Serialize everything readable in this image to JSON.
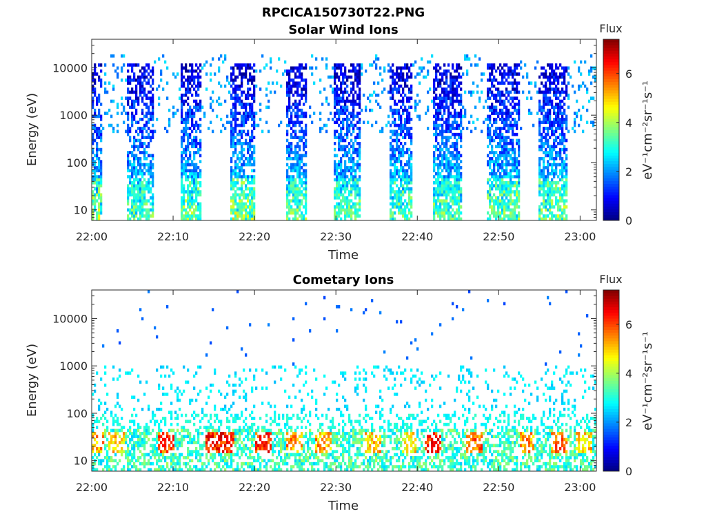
{
  "figure_title": "RPCICA150730T22.PNG",
  "chart_data": [
    {
      "type": "heatmap",
      "title": "Solar Wind Ions",
      "xlabel": "Time",
      "ylabel": "Energy (eV)",
      "y_scale": "log",
      "x_range": [
        "22:00",
        "23:02"
      ],
      "ylim": [
        6,
        40000
      ],
      "x_tick_labels": [
        "22:00",
        "22:10",
        "22:20",
        "22:30",
        "22:40",
        "22:50",
        "23:00"
      ],
      "x_tick_minutes": [
        0,
        10,
        20,
        30,
        40,
        50,
        60
      ],
      "y_tick_labels": [
        "10",
        "100",
        "1000",
        "10000"
      ],
      "y_tick_values": [
        10,
        100,
        1000,
        10000
      ],
      "colorbar": {
        "label_top": "Flux",
        "unit": "eV⁻¹cm⁻²sr⁻¹s⁻¹",
        "range": [
          0,
          7.4
        ],
        "ticks": [
          "0",
          "2",
          "4",
          "6"
        ],
        "tick_values": [
          0,
          2,
          4,
          6
        ],
        "colormap": "jet"
      },
      "bursts": [
        {
          "start_min": 0.0,
          "end_min": 1.2,
          "peak_log_flux": 4.5
        },
        {
          "start_min": 4.2,
          "end_min": 7.5,
          "peak_log_flux": 4.0
        },
        {
          "start_min": 10.8,
          "end_min": 13.5,
          "peak_log_flux": 4.2
        },
        {
          "start_min": 17.0,
          "end_min": 20.2,
          "peak_log_flux": 4.6
        },
        {
          "start_min": 23.8,
          "end_min": 26.5,
          "peak_log_flux": 4.1
        },
        {
          "start_min": 29.8,
          "end_min": 33.0,
          "peak_log_flux": 4.0
        },
        {
          "start_min": 36.5,
          "end_min": 39.5,
          "peak_log_flux": 3.9
        },
        {
          "start_min": 42.0,
          "end_min": 45.5,
          "peak_log_flux": 4.0
        },
        {
          "start_min": 48.5,
          "end_min": 52.5,
          "peak_log_flux": 4.3
        },
        {
          "start_min": 55.0,
          "end_min": 58.5,
          "peak_log_flux": 4.2
        }
      ]
    },
    {
      "type": "heatmap",
      "title": "Cometary Ions",
      "xlabel": "Time",
      "ylabel": "Energy (eV)",
      "y_scale": "log",
      "x_range": [
        "22:00",
        "23:02"
      ],
      "ylim": [
        6,
        40000
      ],
      "x_tick_labels": [
        "22:00",
        "22:10",
        "22:20",
        "22:30",
        "22:40",
        "22:50",
        "23:00"
      ],
      "x_tick_minutes": [
        0,
        10,
        20,
        30,
        40,
        50,
        60
      ],
      "y_tick_labels": [
        "10",
        "100",
        "1000",
        "10000"
      ],
      "y_tick_values": [
        10,
        100,
        1000,
        10000
      ],
      "colorbar": {
        "label_top": "Flux",
        "unit": "eV⁻¹cm⁻²sr⁻¹s⁻¹",
        "range": [
          0,
          7.4
        ],
        "ticks": [
          "0",
          "2",
          "4",
          "6"
        ],
        "tick_values": [
          0,
          2,
          4,
          6
        ],
        "colormap": "jet"
      },
      "hot_spots": [
        {
          "t_min": 0.5,
          "log_flux": 6.0
        },
        {
          "t_min": 3.0,
          "log_flux": 5.6
        },
        {
          "t_min": 9.2,
          "log_flux": 6.6
        },
        {
          "t_min": 15.0,
          "log_flux": 6.9
        },
        {
          "t_min": 16.5,
          "log_flux": 7.0
        },
        {
          "t_min": 21.0,
          "log_flux": 6.9
        },
        {
          "t_min": 25.0,
          "log_flux": 6.2
        },
        {
          "t_min": 28.5,
          "log_flux": 6.0
        },
        {
          "t_min": 34.5,
          "log_flux": 5.8
        },
        {
          "t_min": 39.0,
          "log_flux": 5.5
        },
        {
          "t_min": 42.0,
          "log_flux": 7.0
        },
        {
          "t_min": 47.0,
          "log_flux": 6.4
        },
        {
          "t_min": 53.5,
          "log_flux": 6.1
        },
        {
          "t_min": 57.5,
          "log_flux": 6.3
        },
        {
          "t_min": 60.5,
          "log_flux": 5.7
        }
      ]
    }
  ]
}
